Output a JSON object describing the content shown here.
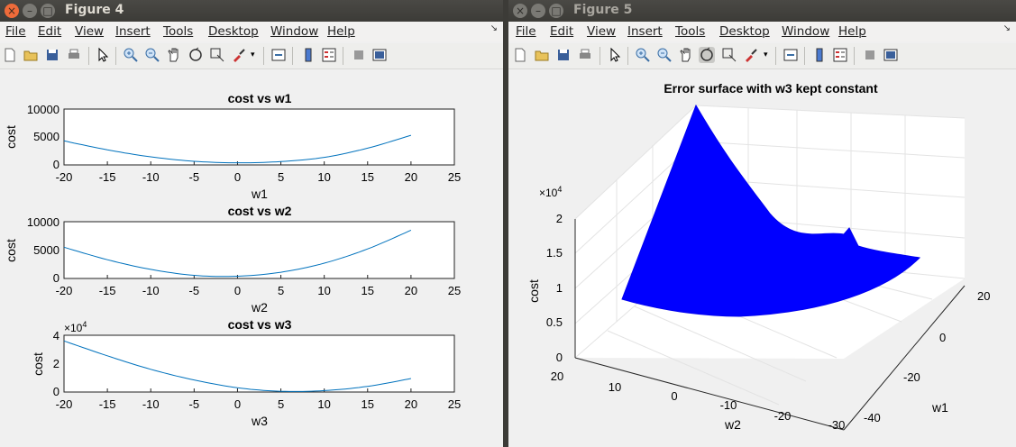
{
  "figure4": {
    "title": "Figure 4",
    "menu": [
      "File",
      "Edit",
      "View",
      "Insert",
      "Tools",
      "Desktop",
      "Window",
      "Help"
    ],
    "plots": [
      {
        "title": "cost vs w1",
        "xlabel": "w1",
        "ylabel": "cost",
        "ytick_labels": [
          "0",
          "5000",
          "10000"
        ],
        "xtick_labels": [
          "-20",
          "-15",
          "-10",
          "-5",
          "0",
          "5",
          "10",
          "15",
          "20",
          "25"
        ],
        "exponent": ""
      },
      {
        "title": "cost vs w2",
        "xlabel": "w2",
        "ylabel": "cost",
        "ytick_labels": [
          "0",
          "5000",
          "10000"
        ],
        "xtick_labels": [
          "-20",
          "-15",
          "-10",
          "-5",
          "0",
          "5",
          "10",
          "15",
          "20",
          "25"
        ],
        "exponent": ""
      },
      {
        "title": "cost vs w3",
        "xlabel": "w3",
        "ylabel": "cost",
        "ytick_labels": [
          "0",
          "2",
          "4"
        ],
        "xtick_labels": [
          "-20",
          "-15",
          "-10",
          "-5",
          "0",
          "5",
          "10",
          "15",
          "20",
          "25"
        ],
        "exponent": "×10"
      }
    ]
  },
  "figure5": {
    "title": "Figure 5",
    "menu": [
      "File",
      "Edit",
      "View",
      "Insert",
      "Tools",
      "Desktop",
      "Window",
      "Help"
    ],
    "plot": {
      "title": "Error surface with w3 kept constant",
      "zlabel": "cost",
      "xlabel": "w2",
      "ylabel": "w1",
      "ztick_labels": [
        "0",
        "0.5",
        "1",
        "1.5",
        "2"
      ],
      "w2_tick_labels": [
        "20",
        "10",
        "0",
        "-10",
        "-20",
        "-30"
      ],
      "w1_tick_labels": [
        "-40",
        "-20",
        "0",
        "20"
      ],
      "exponent": "×10"
    }
  },
  "chart_data": [
    {
      "type": "line",
      "title": "cost vs w1",
      "xlabel": "w1",
      "ylabel": "cost",
      "xlim": [
        -20,
        25
      ],
      "ylim": [
        0,
        10000
      ],
      "grid": false,
      "x": [
        -20,
        -15,
        -10,
        -5,
        0,
        5,
        10,
        15,
        20
      ],
      "series": [
        {
          "values": [
            4300,
            2700,
            1450,
            650,
            380,
            600,
            1350,
            3000,
            5300
          ]
        }
      ]
    },
    {
      "type": "line",
      "title": "cost vs w2",
      "xlabel": "w2",
      "ylabel": "cost",
      "xlim": [
        -20,
        25
      ],
      "ylim": [
        0,
        10000
      ],
      "grid": false,
      "x": [
        -20,
        -15,
        -10,
        -5,
        0,
        5,
        10,
        15,
        20
      ],
      "series": [
        {
          "values": [
            5500,
            3300,
            1600,
            550,
            400,
            1100,
            2700,
            5200,
            8500
          ]
        }
      ]
    },
    {
      "type": "line",
      "title": "cost vs w3",
      "xlabel": "w3",
      "ylabel": "cost",
      "xlim": [
        -20,
        25
      ],
      "ylim": [
        0,
        4
      ],
      "y_exponent": "10^4",
      "grid": false,
      "x": [
        -20,
        -15,
        -10,
        -5,
        0,
        5,
        10,
        15,
        20
      ],
      "series": [
        {
          "values": [
            3.6,
            2.55,
            1.6,
            0.85,
            0.3,
            0.05,
            0.1,
            0.4,
            0.95
          ]
        }
      ]
    },
    {
      "type": "area",
      "title": "Error surface with w3 kept constant",
      "xlabel": "w2",
      "ylabel": "w1",
      "zlabel": "cost",
      "zlim": [
        0,
        2
      ],
      "z_exponent": "10^4",
      "surface_color": "#0000ff",
      "grid": true
    }
  ]
}
